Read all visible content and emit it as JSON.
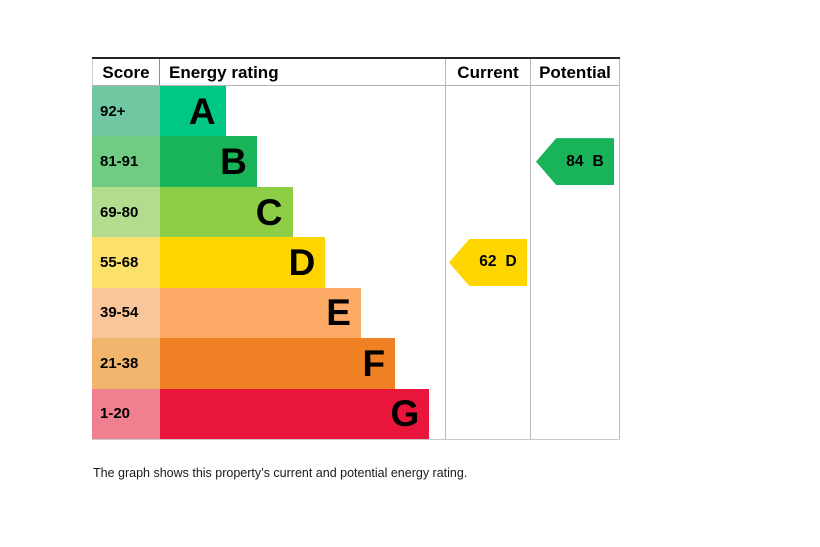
{
  "header": {
    "score": "Score",
    "rating": "Energy rating",
    "current": "Current",
    "potential": "Potential"
  },
  "bands": [
    {
      "score": "92+",
      "letter": "A",
      "color": "#00c781",
      "tint": "#70c8a3",
      "bar_pct": 23
    },
    {
      "score": "81-91",
      "letter": "B",
      "color": "#19b459",
      "tint": "#70cc82",
      "bar_pct": 34
    },
    {
      "score": "69-80",
      "letter": "C",
      "color": "#8dce46",
      "tint": "#b2dc8e",
      "bar_pct": 46.5
    },
    {
      "score": "55-68",
      "letter": "D",
      "color": "#ffd500",
      "tint": "#fbe16b",
      "bar_pct": 58
    },
    {
      "score": "39-54",
      "letter": "E",
      "color": "#fcaa65",
      "tint": "#f9c69b",
      "bar_pct": 70.5
    },
    {
      "score": "21-38",
      "letter": "F",
      "color": "#ef8023",
      "tint": "#f2b56e",
      "bar_pct": 82.5
    },
    {
      "score": "1-20",
      "letter": "G",
      "color": "#e9153b",
      "tint": "#f07f90",
      "bar_pct": 94.5
    }
  ],
  "current": {
    "value": "62",
    "band": "D"
  },
  "potential": {
    "value": "84",
    "band": "B"
  },
  "footer": "The graph shows this property’s current and potential energy rating.",
  "chart_data": {
    "type": "bar",
    "title": "Energy rating",
    "categories": [
      "A",
      "B",
      "C",
      "D",
      "E",
      "F",
      "G"
    ],
    "score_ranges": [
      "92+",
      "81-91",
      "69-80",
      "55-68",
      "39-54",
      "21-38",
      "1-20"
    ],
    "band_colors": [
      "#00c781",
      "#19b459",
      "#8dce46",
      "#ffd500",
      "#fcaa65",
      "#ef8023",
      "#e9153b"
    ],
    "series": [
      {
        "name": "Current",
        "value": 62,
        "band": "D",
        "color": "#ffd500"
      },
      {
        "name": "Potential",
        "value": 84,
        "band": "B",
        "color": "#19b459"
      }
    ],
    "legend_position": "none",
    "grid": false,
    "note": "EPC-style chart: bar length increases from band A (shortest) to band G (longest); arrows mark current and potential ratings in their band rows."
  }
}
